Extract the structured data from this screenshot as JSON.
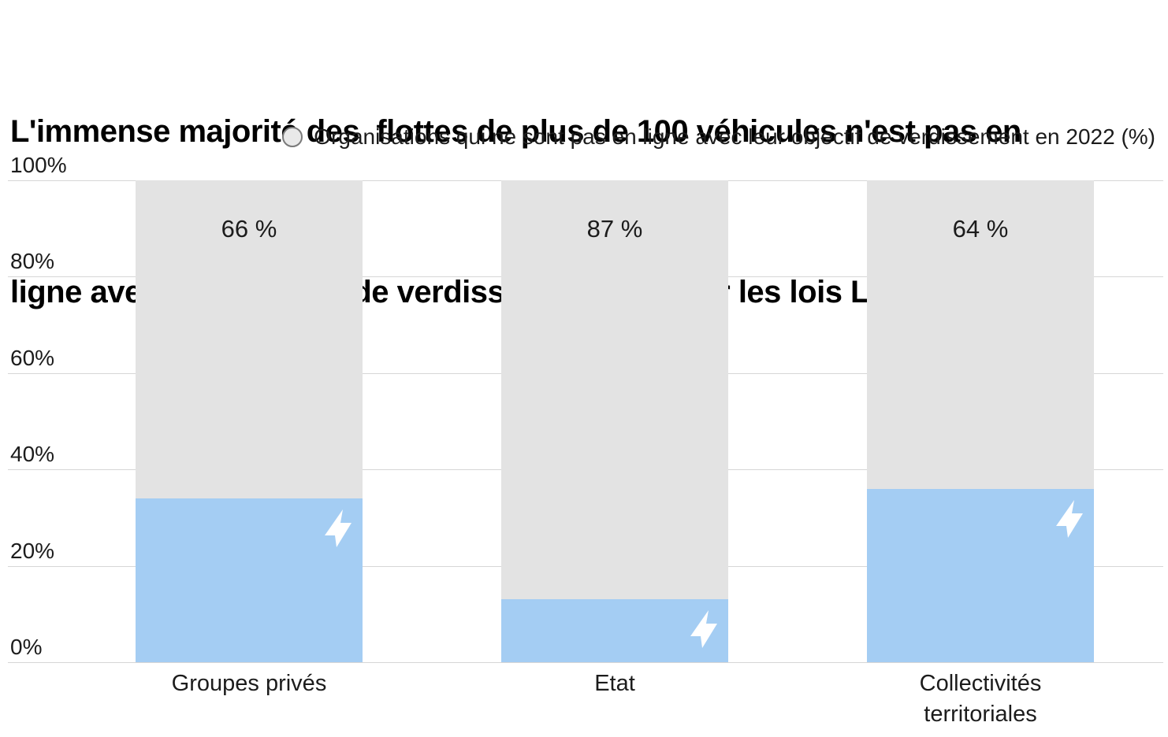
{
  "title": {
    "line1": "L'immense majorité des  flottes de plus de 100 véhicules n'est pas en",
    "line2": "ligne avec les objectifs de verdissement fixés par les lois LOM et Climat"
  },
  "legend": {
    "marker": "circle-icon",
    "label": "Organisations qui ne sont pas en ligne avec leur objectif de verdissement en 2022 (%)"
  },
  "chart_data": {
    "type": "bar",
    "stacked": true,
    "title": "L'immense majorité des flottes de plus de 100 véhicules n'est pas en ligne avec les objectifs de verdissement fixés par les lois LOM et Climat",
    "categories": [
      "Groupes privés",
      "Etat",
      "Collectivités territoriales"
    ],
    "series": [
      {
        "name": "Organisations qui ne sont pas en ligne avec leur objectif de verdissement en 2022 (%)",
        "values": [
          66,
          87,
          64
        ],
        "color": "#e3e3e3"
      },
      {
        "name": "",
        "values": [
          34,
          13,
          36
        ],
        "color": "#a4cdf3"
      }
    ],
    "data_labels": [
      "66 %",
      "87 %",
      "64 %"
    ],
    "bar_icon": "lightning-bolt-icon",
    "y_ticks": [
      "0%",
      "20%",
      "40%",
      "60%",
      "80%",
      "100%"
    ],
    "ylim": [
      0,
      100
    ],
    "grid": true,
    "legend_position": "top",
    "xlabel": "",
    "ylabel": ""
  },
  "colors": {
    "bar_blue": "#a4cdf3",
    "bar_gray": "#e3e3e3",
    "gridline": "#d6d6d6",
    "text": "#1a1a1a",
    "bolt": "#ffffff",
    "legend_circle_fill": "#e9e9e9",
    "legend_circle_border": "#7a7a7a"
  }
}
